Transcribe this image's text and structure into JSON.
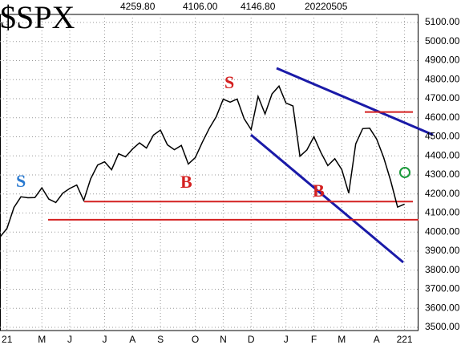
{
  "chart_data": {
    "type": "line",
    "title": "$SPX",
    "header_values": [
      "4259.80",
      "4106.00",
      "4146.80",
      "20220505"
    ],
    "categories": [
      null,
      "21",
      null,
      null,
      null,
      null,
      "M",
      null,
      null,
      null,
      "J",
      null,
      null,
      null,
      null,
      "J",
      null,
      null,
      null,
      "A",
      null,
      null,
      null,
      "S",
      null,
      null,
      null,
      null,
      "O",
      null,
      null,
      null,
      "N",
      null,
      null,
      null,
      "D",
      null,
      null,
      null,
      null,
      "J",
      null,
      null,
      null,
      "F",
      null,
      null,
      null,
      "M",
      null,
      null,
      null,
      null,
      "A",
      null,
      null,
      null,
      "221"
    ],
    "series": [
      {
        "color": "#000000",
        "values": [
          3974,
          4019,
          4129,
          4185,
          4180,
          4181,
          4232,
          4173,
          4155,
          4204,
          4229,
          4247,
          4166,
          4280,
          4352,
          4369,
          4327,
          4411,
          4395,
          4436,
          4468,
          4441,
          4509,
          4535,
          4458,
          4432,
          4455,
          4357,
          4391,
          4471,
          4544,
          4605,
          4697,
          4682,
          4698,
          4595,
          4538,
          4712,
          4620,
          4725,
          4766,
          4677,
          4662,
          4398,
          4431,
          4500,
          4418,
          4349,
          4385,
          4328,
          4204,
          4463,
          4543,
          4545,
          4488,
          4392,
          4271,
          4131,
          4146.8
        ]
      }
    ],
    "ylim": [
      3500,
      5100
    ],
    "yticks": [
      {
        "value": 3500,
        "label": "3500.00"
      },
      {
        "value": 3600,
        "label": "3600.00"
      },
      {
        "value": 3700,
        "label": "3700.00"
      },
      {
        "value": 3800,
        "label": "3800.00"
      },
      {
        "value": 3900,
        "label": "3900.00"
      },
      {
        "value": 4000,
        "label": "4000.00"
      },
      {
        "value": 4100,
        "label": "4100.00"
      },
      {
        "value": 4200,
        "label": "4200.00"
      },
      {
        "value": 4300,
        "label": "4300.00"
      },
      {
        "value": 4400,
        "label": "4400.00"
      },
      {
        "value": 4500,
        "label": "4500.00"
      },
      {
        "value": 4600,
        "label": "4600.00"
      },
      {
        "value": 4700,
        "label": "4700.00"
      },
      {
        "value": 4800,
        "label": "4800.00"
      },
      {
        "value": 4900,
        "label": "4900.00"
      },
      {
        "value": 5000,
        "label": "5000.00"
      },
      {
        "value": 5100,
        "label": "5100.00"
      }
    ],
    "hlines": [
      4630,
      4160,
      4065
    ],
    "hline_color": "#d42020",
    "annotations": [
      {
        "text": "S"
      },
      {
        "text": "B"
      },
      {
        "text": "S"
      },
      {
        "text": "B"
      }
    ],
    "grid": true
  }
}
